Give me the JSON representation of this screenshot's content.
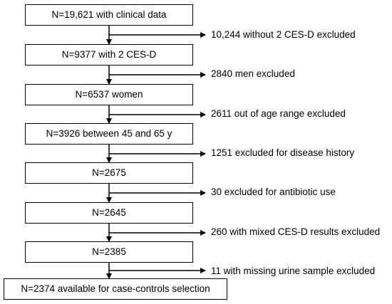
{
  "steps": [
    {
      "label": "N=19,621 with clinical data",
      "exclusion": "10,244 without 2 CES-D excluded"
    },
    {
      "label": "N=9377 with 2 CES-D",
      "exclusion": "2840 men excluded"
    },
    {
      "label": "N=6537 women",
      "exclusion": "2611 out of age range excluded"
    },
    {
      "label": "N=3926 between 45 and 65 y",
      "exclusion": "1251 excluded for disease history"
    },
    {
      "label": "N=2675",
      "exclusion": "30 excluded for antibiotic use"
    },
    {
      "label": "N=2645",
      "exclusion": "260 with mixed CES-D results excluded"
    },
    {
      "label": "N=2385",
      "exclusion": "11 with missing urine sample excluded"
    },
    {
      "label": "N=2374 available for case-controls selection",
      "exclusion": ""
    }
  ]
}
